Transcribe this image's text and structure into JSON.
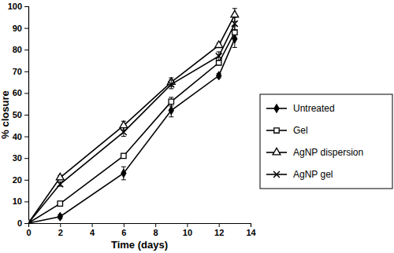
{
  "chart_data": {
    "type": "line",
    "x_label": "Time (days)",
    "y_label": "% closure",
    "x": [
      0,
      2,
      6,
      9,
      12,
      13
    ],
    "xlim": [
      0,
      14
    ],
    "xticks": [
      0,
      2,
      4,
      6,
      8,
      10,
      12,
      14
    ],
    "ylim": [
      0,
      100
    ],
    "yticks": [
      0,
      10,
      20,
      30,
      40,
      50,
      60,
      70,
      80,
      90,
      100
    ],
    "grid": false,
    "legend": "right",
    "series": [
      {
        "name": "Untreated",
        "color": "#000000",
        "marker": "diamond",
        "values": [
          0,
          3,
          23,
          52,
          68,
          85
        ],
        "errors": [
          0,
          1,
          3,
          3,
          1,
          4
        ]
      },
      {
        "name": "Gel",
        "color": "#000000",
        "marker": "square-open",
        "values": [
          0,
          9,
          31,
          56,
          74,
          88
        ],
        "errors": [
          0,
          1,
          1,
          2,
          1,
          3
        ]
      },
      {
        "name": "AgNP dispersion",
        "color": "#000000",
        "marker": "triangle-open",
        "values": [
          0,
          21,
          45,
          65,
          82,
          96
        ],
        "errors": [
          0,
          1,
          2,
          2,
          1,
          3
        ]
      },
      {
        "name": "AgNP gel",
        "color": "#000000",
        "marker": "x",
        "values": [
          0,
          18,
          42,
          64,
          77,
          92
        ],
        "errors": [
          0,
          1,
          2,
          2,
          2,
          3
        ]
      }
    ]
  }
}
